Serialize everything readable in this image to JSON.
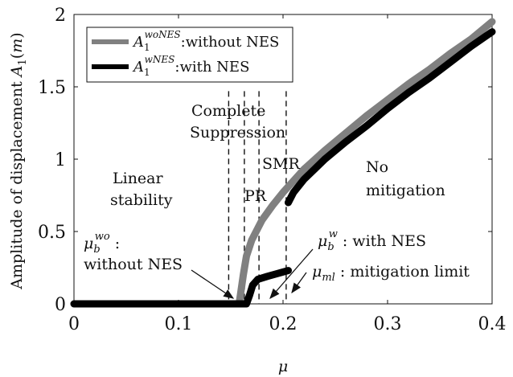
{
  "chart_data": {
    "type": "line",
    "xlabel": "μ",
    "ylabel": "Amplitude of displacement A₁(m)",
    "xlim": [
      0,
      0.4
    ],
    "ylim": [
      0,
      2
    ],
    "x_ticks": [
      "0",
      "0.1",
      "0.2",
      "0.3",
      "0.4"
    ],
    "y_ticks": [
      "0",
      "0.5",
      "1",
      "1.5",
      "2"
    ],
    "legend": {
      "position": "top-left",
      "entries": [
        {
          "symbol": "A",
          "sub": "1",
          "sup": "woNES",
          "text": ":without NES",
          "color": "#808080"
        },
        {
          "symbol": "A",
          "sub": "1",
          "sup": "wNES",
          "text": ":with NES",
          "color": "#000000"
        }
      ]
    },
    "series": [
      {
        "name": "A1^woNES: without NES",
        "color": "#808080",
        "points": [
          [
            0.0,
            0.0
          ],
          [
            0.05,
            0.0
          ],
          [
            0.1,
            0.0
          ],
          [
            0.15,
            0.0
          ],
          [
            0.158,
            0.0
          ],
          [
            0.162,
            0.2
          ],
          [
            0.165,
            0.33
          ],
          [
            0.17,
            0.44
          ],
          [
            0.18,
            0.58
          ],
          [
            0.19,
            0.68
          ],
          [
            0.2,
            0.77
          ],
          [
            0.22,
            0.93
          ],
          [
            0.24,
            1.06
          ],
          [
            0.26,
            1.18
          ],
          [
            0.28,
            1.3
          ],
          [
            0.3,
            1.41
          ],
          [
            0.32,
            1.52
          ],
          [
            0.34,
            1.62
          ],
          [
            0.36,
            1.73
          ],
          [
            0.38,
            1.83
          ],
          [
            0.4,
            1.95
          ]
        ]
      },
      {
        "name": "A1^wNES: with NES",
        "color": "#000000",
        "segments": [
          [
            [
              0.0,
              0.0
            ],
            [
              0.05,
              0.0
            ],
            [
              0.1,
              0.0
            ],
            [
              0.15,
              0.0
            ],
            [
              0.165,
              0.0
            ],
            [
              0.168,
              0.06
            ],
            [
              0.171,
              0.13
            ],
            [
              0.176,
              0.17
            ],
            [
              0.185,
              0.19
            ],
            [
              0.195,
              0.21
            ],
            [
              0.205,
              0.23
            ]
          ],
          [
            [
              0.205,
              0.7
            ],
            [
              0.21,
              0.77
            ],
            [
              0.22,
              0.86
            ],
            [
              0.23,
              0.93
            ],
            [
              0.24,
              1.0
            ],
            [
              0.26,
              1.12
            ],
            [
              0.28,
              1.23
            ],
            [
              0.3,
              1.35
            ],
            [
              0.32,
              1.46
            ],
            [
              0.34,
              1.56
            ],
            [
              0.36,
              1.67
            ],
            [
              0.38,
              1.78
            ],
            [
              0.4,
              1.88
            ]
          ]
        ]
      }
    ],
    "vlines": [
      0.148,
      0.163,
      0.177,
      0.203
    ],
    "annotations": {
      "complete_1": "Complete",
      "complete_2": "Suppression",
      "smr": "SMR",
      "pr": "PR",
      "linear_1": "Linear",
      "linear_2": "stability",
      "nomit_1": "No",
      "nomit_2": "mitigation",
      "mu_wo_sym": "μ",
      "mu_wo_sub": "b",
      "mu_wo_sup": "wo",
      "mu_wo_colon": " :",
      "mu_wo_text": "without NES",
      "mu_w_sym": "μ",
      "mu_w_sub": "b",
      "mu_w_sup": "w",
      "mu_w_text": " : with NES",
      "mu_ml_sym": "μ",
      "mu_ml_sub": "ml",
      "mu_ml_text": " : mitigation limit"
    }
  }
}
